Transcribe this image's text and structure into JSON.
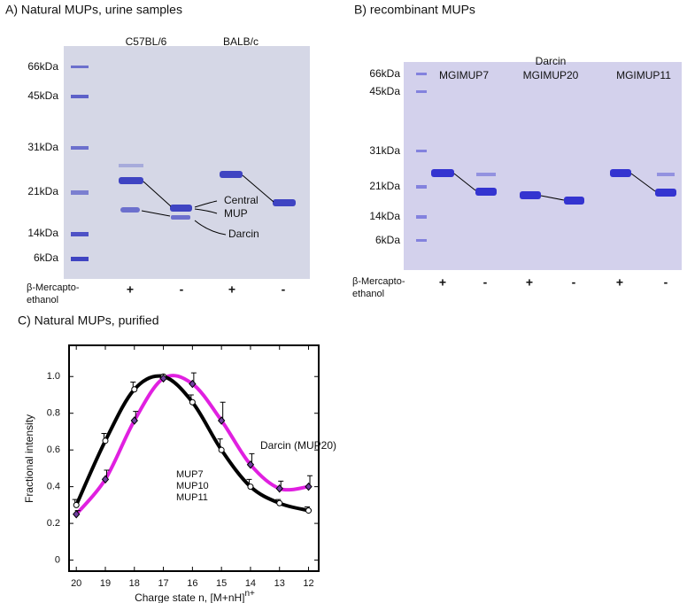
{
  "panel_a": {
    "title": "A) Natural MUPs, urine samples",
    "strains": [
      "C57BL/6",
      "BALB/c"
    ],
    "markers": [
      "66kDa",
      "45kDa",
      "31kDa",
      "21kDa",
      "14kDa",
      "6kDa"
    ],
    "annotations": [
      "Central",
      "MUP",
      "Darcin"
    ],
    "reagent": [
      "β-Mercapto-",
      "ethanol"
    ],
    "lane_signs": [
      "+",
      "-",
      "+",
      "-"
    ]
  },
  "panel_b": {
    "title": "B) recombinant MUPs",
    "proteins": [
      "MGIMUP7",
      "MGIMUP20",
      "MGIMUP11"
    ],
    "protein_alias": "Darcin",
    "markers": [
      "66kDa",
      "45kDa",
      "31kDa",
      "21kDa",
      "14kDa",
      "6kDa"
    ],
    "reagent": [
      "β-Mercapto-",
      "ethanol"
    ],
    "lane_signs": [
      "+",
      "-",
      "+",
      "-",
      "+",
      "-"
    ]
  },
  "chart_data": {
    "type": "line",
    "title": "C) Natural MUPs, purified",
    "x_label": "Charge state n, [M+nH]",
    "x_label_superscript": "n+",
    "y_label": "Fractional intensity",
    "x": [
      20,
      19,
      18,
      17,
      16,
      15,
      14,
      13,
      12
    ],
    "xlim": [
      20.25,
      11.65
    ],
    "xticks": [
      20,
      19,
      18,
      17,
      16,
      15,
      14,
      13,
      12
    ],
    "ylim": [
      -0.06,
      1.17
    ],
    "yticks": [
      0,
      0.2,
      0.4,
      0.6,
      0.8,
      {
        "value": 1,
        "label": "1.0"
      }
    ],
    "series": [
      {
        "name": "MUP7 MUP10 MUP11",
        "label_lines": [
          "MUP7",
          "MUP10",
          "MUP11"
        ],
        "color": "#000000",
        "marker": "circle",
        "values": [
          0.3,
          0.65,
          0.93,
          1.0,
          0.86,
          0.6,
          0.4,
          0.31,
          0.27
        ],
        "errors": [
          0.03,
          0.04,
          0.04,
          0.01,
          0.04,
          0.06,
          0.04,
          0.02,
          0.02
        ]
      },
      {
        "name": "Darcin (MUP20)",
        "color": "#e020e0",
        "marker": "diamond",
        "values": [
          0.25,
          0.44,
          0.76,
          0.99,
          0.96,
          0.76,
          0.52,
          0.39,
          0.4
        ],
        "errors": [
          0.02,
          0.05,
          0.05,
          0.01,
          0.06,
          0.1,
          0.06,
          0.04,
          0.06
        ]
      }
    ]
  }
}
